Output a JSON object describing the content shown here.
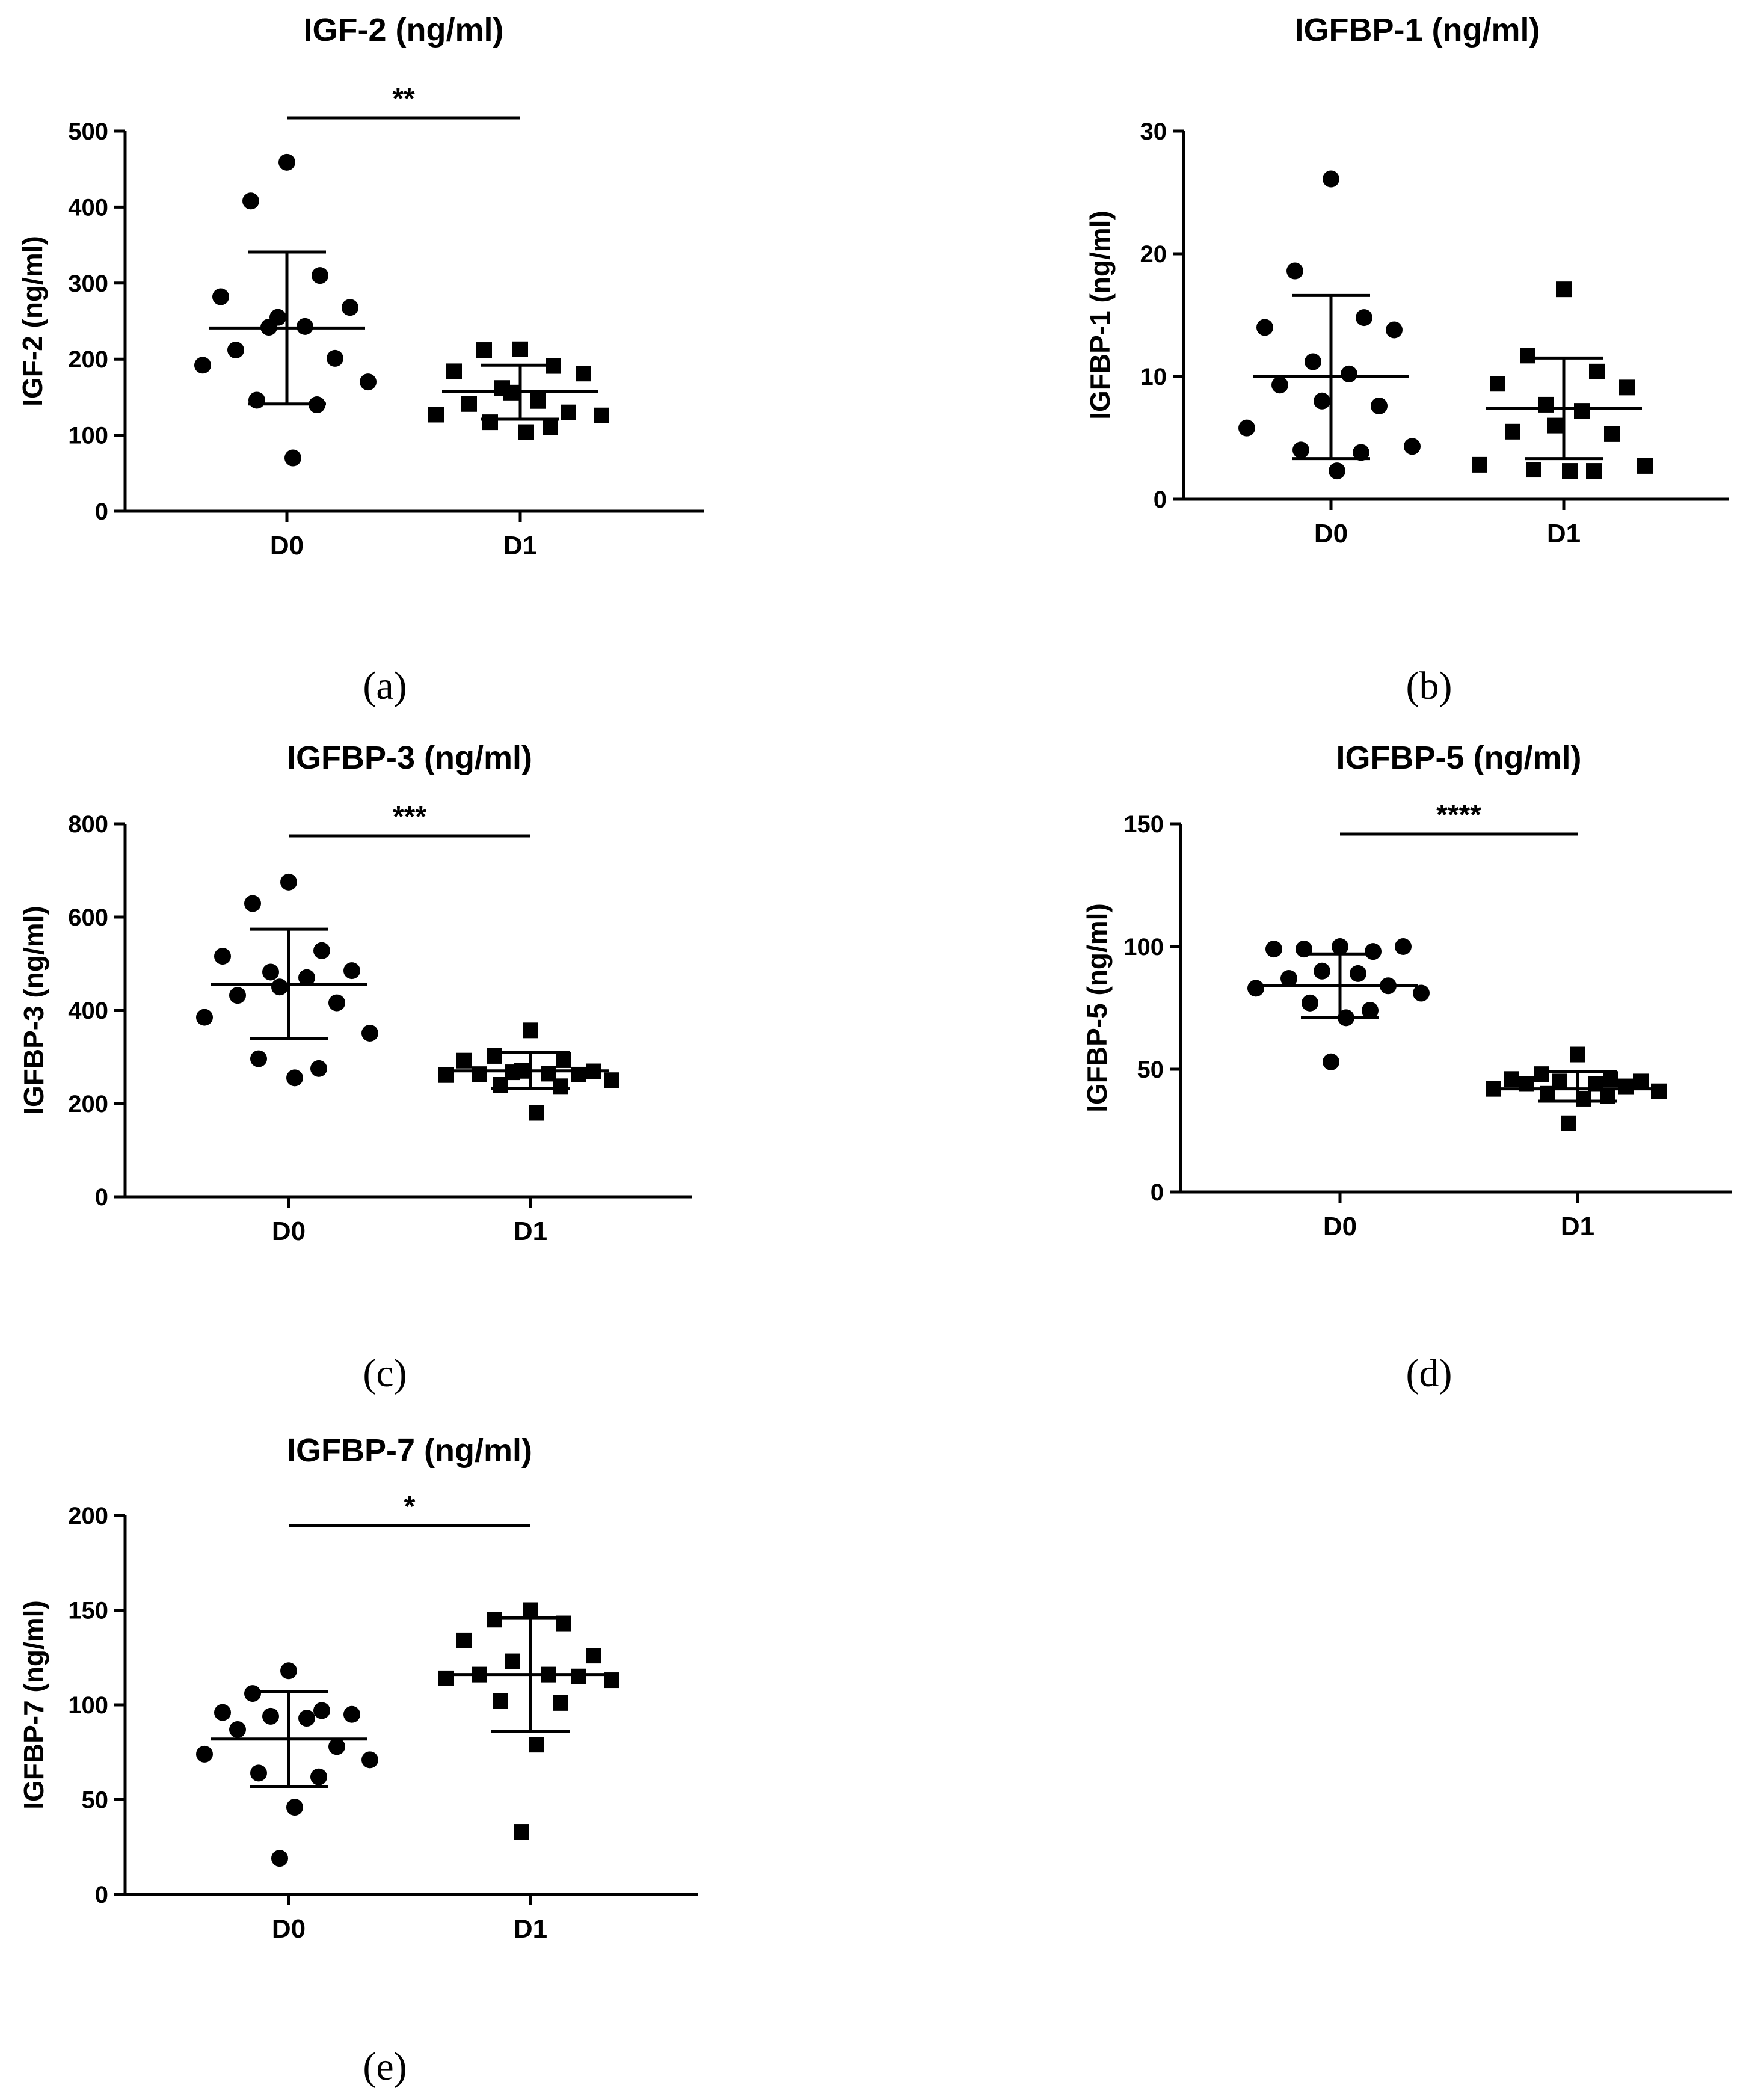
{
  "chart_data": [
    {
      "type": "scatter",
      "panel_label": "(a)",
      "title": "IGF-2 (ng/ml)",
      "ylabel": "IGF-2 (ng/ml)",
      "xlabel": "",
      "categories": [
        "D0",
        "D1"
      ],
      "ylim": [
        0,
        500
      ],
      "yticks": [
        0,
        100,
        200,
        300,
        400,
        500
      ],
      "yticks_text": [
        "0",
        "100",
        "200",
        "300",
        "400",
        "500"
      ],
      "significance": "**",
      "series": [
        {
          "name": "D0",
          "marker": "circle",
          "mean": 241,
          "sd_low": 141,
          "sd_high": 341,
          "values": [
            459,
            408,
            310,
            282,
            268,
            242,
            243,
            212,
            201,
            192,
            170,
            146,
            140,
            70,
            255
          ]
        },
        {
          "name": "D1",
          "marker": "square",
          "mean": 157,
          "sd_low": 121,
          "sd_high": 192,
          "values": [
            213,
            212,
            191,
            184,
            181,
            162,
            145,
            141,
            130,
            127,
            126,
            117,
            110,
            104,
            156
          ]
        }
      ]
    },
    {
      "type": "scatter",
      "panel_label": "(b)",
      "title": "IGFBP-1 (ng/ml)",
      "ylabel": "IGFBP-1 (ng/ml)",
      "xlabel": "",
      "categories": [
        "D0",
        "D1"
      ],
      "ylim": [
        0,
        30
      ],
      "yticks": [
        0,
        10,
        20,
        30
      ],
      "yticks_text": [
        "0",
        "10",
        "20",
        "30"
      ],
      "significance": "",
      "series": [
        {
          "name": "D0",
          "marker": "circle",
          "mean": 10.0,
          "sd_low": 3.3,
          "sd_high": 16.6,
          "values": [
            26.1,
            18.6,
            14.8,
            14.0,
            13.8,
            11.2,
            10.2,
            9.3,
            7.6,
            5.8,
            4.3,
            4.0,
            3.8,
            2.3,
            8.0
          ]
        },
        {
          "name": "D1",
          "marker": "square",
          "mean": 7.4,
          "sd_low": 3.3,
          "sd_high": 11.5,
          "values": [
            17.1,
            11.7,
            10.4,
            9.4,
            9.1,
            7.7,
            7.2,
            5.5,
            5.3,
            2.8,
            2.7,
            2.4,
            2.3,
            2.3,
            6.0
          ]
        }
      ]
    },
    {
      "type": "scatter",
      "panel_label": "(c)",
      "title": "IGFBP-3 (ng/ml)",
      "ylabel": "IGFBP-3 (ng/ml)",
      "xlabel": "",
      "categories": [
        "D0",
        "D1"
      ],
      "ylim": [
        0,
        800
      ],
      "yticks": [
        0,
        200,
        400,
        600,
        800
      ],
      "yticks_text": [
        "0",
        "200",
        "400",
        "600",
        "800"
      ],
      "significance": "***",
      "series": [
        {
          "name": "D0",
          "marker": "circle",
          "mean": 456,
          "sd_low": 339,
          "sd_high": 574,
          "values": [
            675,
            629,
            528,
            516,
            485,
            482,
            470,
            432,
            416,
            385,
            351,
            296,
            275,
            255,
            450
          ]
        },
        {
          "name": "D1",
          "marker": "square",
          "mean": 270,
          "sd_low": 232,
          "sd_high": 309,
          "values": [
            357,
            302,
            293,
            292,
            269,
            267,
            264,
            263,
            262,
            261,
            250,
            240,
            237,
            180,
            270
          ]
        }
      ]
    },
    {
      "type": "scatter",
      "panel_label": "(d)",
      "title": "IGFBP-5 (ng/ml)",
      "ylabel": "IGFBP-5 (ng/ml)",
      "xlabel": "",
      "categories": [
        "D0",
        "D1"
      ],
      "ylim": [
        0,
        150
      ],
      "yticks": [
        0,
        50,
        100,
        150
      ],
      "yticks_text": [
        "0",
        "50",
        "100",
        "150"
      ],
      "significance": "****",
      "series": [
        {
          "name": "D0",
          "marker": "circle",
          "mean": 84,
          "sd_low": 71,
          "sd_high": 97,
          "values": [
            100,
            99,
            98,
            99,
            100,
            90,
            89,
            87,
            84,
            83,
            81,
            77,
            74,
            71,
            53
          ]
        },
        {
          "name": "D1",
          "marker": "square",
          "mean": 42,
          "sd_low": 37,
          "sd_high": 49,
          "values": [
            56,
            48,
            46,
            46,
            45,
            45,
            44,
            44,
            43,
            42,
            41,
            40,
            39,
            38,
            28
          ]
        }
      ]
    },
    {
      "type": "scatter",
      "panel_label": "(e)",
      "title": "IGFBP-7 (ng/ml)",
      "ylabel": "IGFBP-7 (ng/ml)",
      "xlabel": "",
      "categories": [
        "D0",
        "D1"
      ],
      "ylim": [
        0,
        200
      ],
      "yticks": [
        0,
        50,
        100,
        150,
        200
      ],
      "yticks_text": [
        "0",
        "50",
        "100",
        "150",
        "200"
      ],
      "significance": "*",
      "series": [
        {
          "name": "D0",
          "marker": "circle",
          "mean": 82,
          "sd_low": 57,
          "sd_high": 107,
          "values": [
            118,
            106,
            97,
            96,
            95,
            94,
            93,
            87,
            78,
            74,
            71,
            64,
            62,
            46,
            19
          ]
        },
        {
          "name": "D1",
          "marker": "square",
          "mean": 116,
          "sd_low": 86,
          "sd_high": 146,
          "values": [
            150,
            145,
            143,
            134,
            126,
            123,
            116,
            116,
            115,
            114,
            113,
            102,
            101,
            79,
            33
          ]
        }
      ]
    }
  ]
}
